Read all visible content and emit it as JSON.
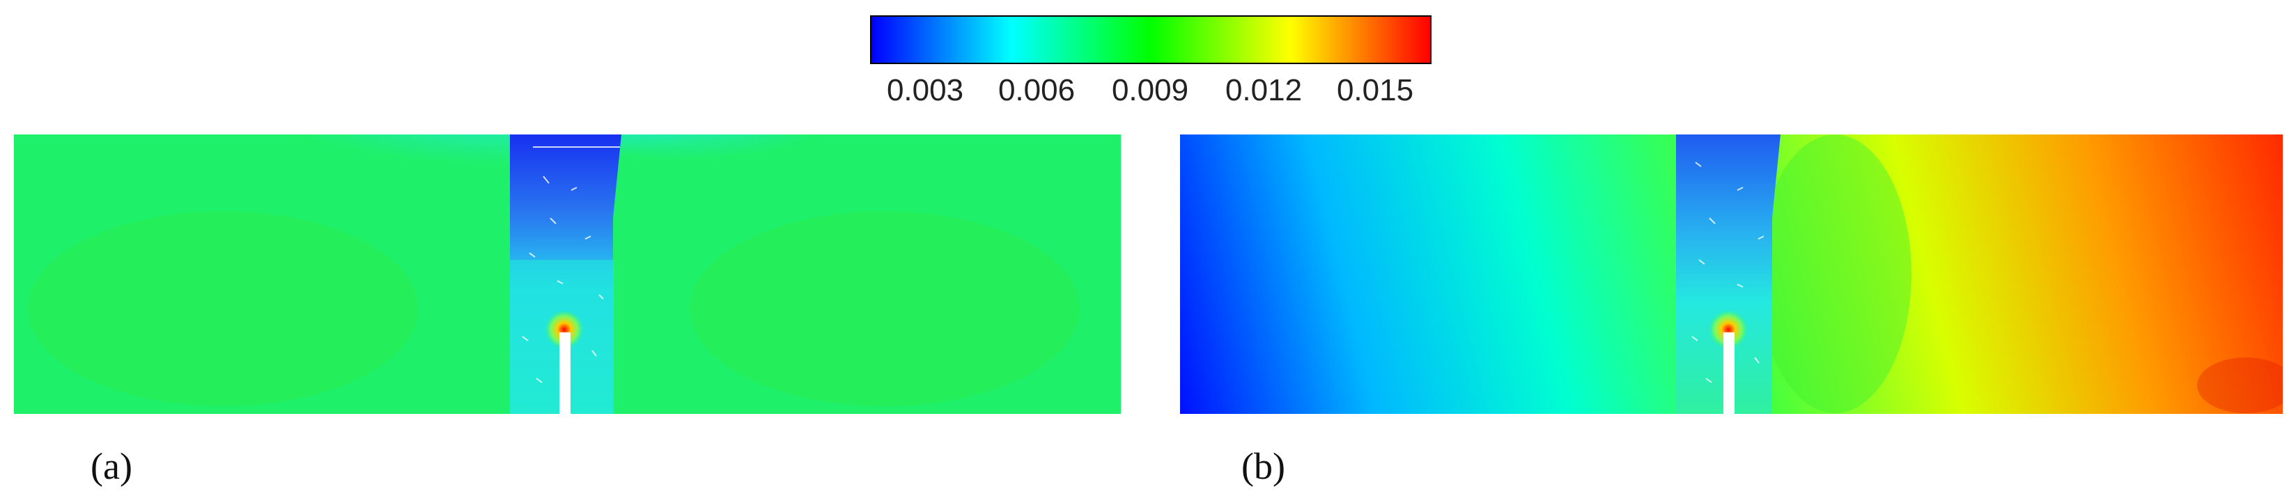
{
  "colorbar": {
    "tick_labels": [
      "0.003",
      "0.006",
      "0.009",
      "0.012",
      "0.015"
    ],
    "colors": [
      "#0000ff",
      "#00ffff",
      "#00ff00",
      "#ffff00",
      "#ff0000"
    ]
  },
  "panels": [
    {
      "label": "(a)",
      "fill_color": "#1ff06a",
      "column_color": "#22e8e0",
      "top_color": "#1e3cf0"
    },
    {
      "label": "(b)",
      "gradient_colors": [
        "#0010ff",
        "#00b8ff",
        "#00ffd0",
        "#40ff40",
        "#d8ff00",
        "#ff9a00",
        "#ff2a00"
      ]
    }
  ]
}
